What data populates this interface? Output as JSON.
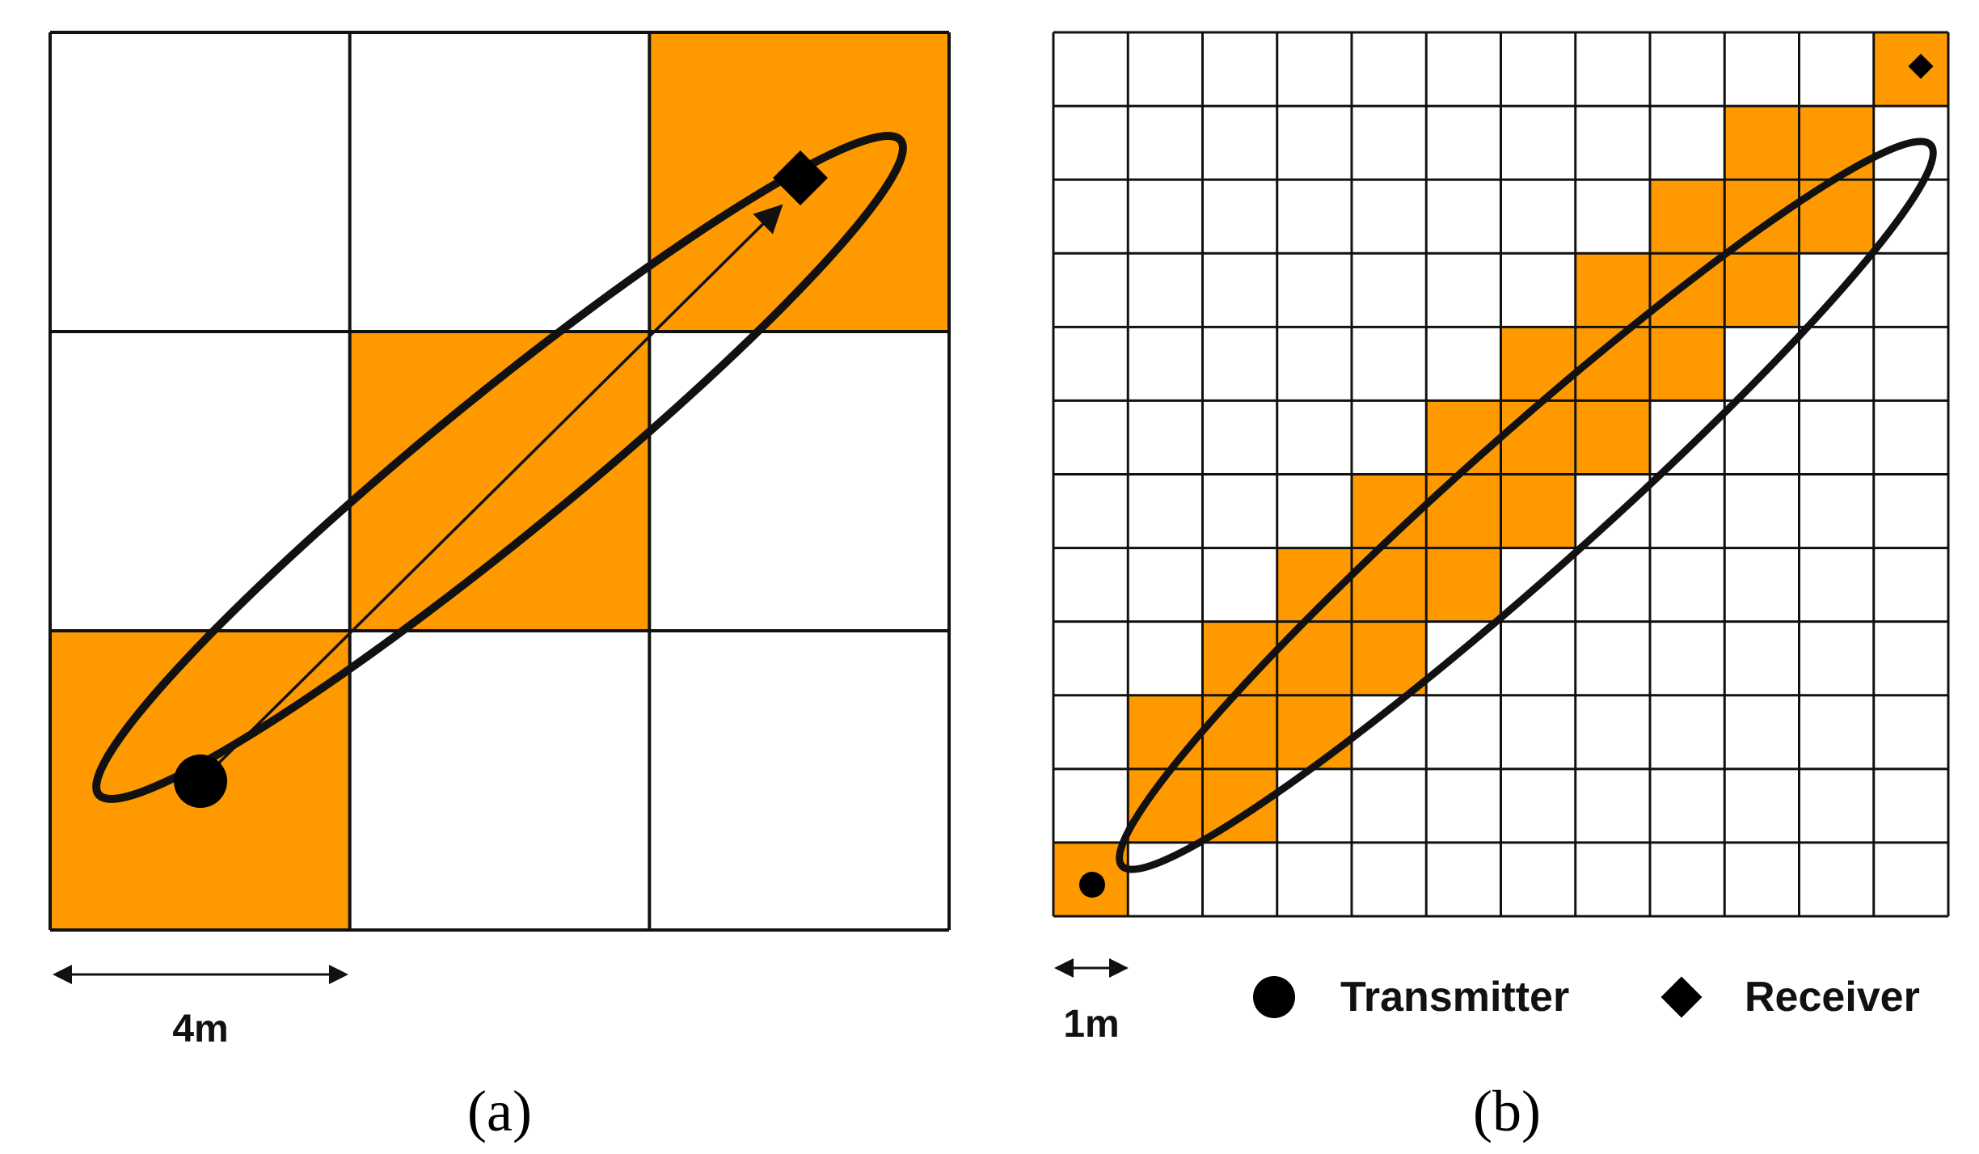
{
  "colors": {
    "highlight": "#FF9900",
    "grid_line": "#111111",
    "background": "#FFFFFF",
    "marker": "#000000"
  },
  "panels": [
    {
      "id": "a",
      "caption": "(a)",
      "grid_size": 3,
      "cell_size_m": 4,
      "scale_label": "4m",
      "highlighted_cells": [
        [
          0,
          0
        ],
        [
          1,
          1
        ],
        [
          2,
          2
        ]
      ],
      "transmitter_cell": [
        0,
        0
      ],
      "receiver_cell": [
        2,
        2
      ],
      "has_arrow": true
    },
    {
      "id": "b",
      "caption": "(b)",
      "grid_size": 12,
      "cell_size_m": 1,
      "scale_label": "1m",
      "highlighted_cells": [
        [
          0,
          0
        ],
        [
          1,
          1
        ],
        [
          1,
          2
        ],
        [
          2,
          1
        ],
        [
          2,
          2
        ],
        [
          2,
          3
        ],
        [
          3,
          2
        ],
        [
          3,
          3
        ],
        [
          3,
          4
        ],
        [
          4,
          3
        ],
        [
          4,
          4
        ],
        [
          4,
          5
        ],
        [
          5,
          4
        ],
        [
          5,
          5
        ],
        [
          5,
          6
        ],
        [
          6,
          5
        ],
        [
          6,
          6
        ],
        [
          6,
          7
        ],
        [
          7,
          6
        ],
        [
          7,
          7
        ],
        [
          7,
          8
        ],
        [
          8,
          7
        ],
        [
          8,
          8
        ],
        [
          8,
          9
        ],
        [
          9,
          8
        ],
        [
          9,
          9
        ],
        [
          9,
          10
        ],
        [
          10,
          9
        ],
        [
          10,
          10
        ],
        [
          11,
          11
        ]
      ],
      "transmitter_cell": [
        0,
        0
      ],
      "receiver_cell": [
        11,
        11
      ],
      "has_arrow": false
    }
  ],
  "legend": {
    "transmitter_icon": "filled-circle",
    "transmitter_label": "Transmitter",
    "receiver_icon": "filled-diamond",
    "receiver_label": "Receiver"
  }
}
